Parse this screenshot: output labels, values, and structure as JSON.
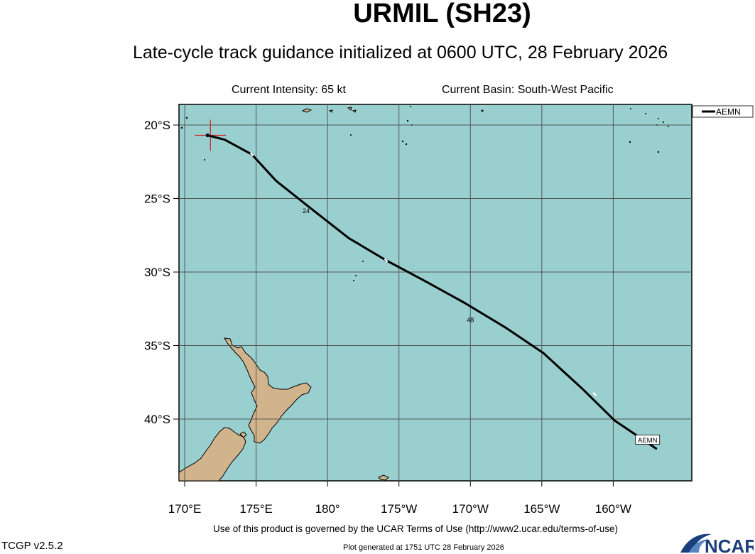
{
  "header": {
    "title": "URMIL (SH23)",
    "subtitle": "Late-cycle track guidance initialized at 0600 UTC, 28 February 2026",
    "intensity": "Current Intensity: 65 kt",
    "basin": "Current Basin: South-West Pacific"
  },
  "footer": {
    "terms": "Use of this product is governed by the UCAR Terms of Use (http://www2.ucar.edu/terms-of-use)",
    "generated": "Plot generated at 1751 UTC   28 February 2026",
    "version": "TCGP v2.5.2",
    "logo_text": "NCAR"
  },
  "colors": {
    "ocean": "#99cfcf",
    "land": "#d2b48c",
    "grid": "#555555",
    "track": "#000000",
    "current_position": "#cc2222"
  },
  "chart_data": {
    "type": "line",
    "title": "URMIL (SH23)",
    "xlabel": "",
    "ylabel": "",
    "x_units": "longitude (degrees east, 0-360)",
    "y_units": "latitude (degrees, negative = south)",
    "xlim": [
      169.6,
      205.5
    ],
    "ylim": [
      -44.2,
      -18.6
    ],
    "x_ticks": [
      170,
      175,
      180,
      185,
      190,
      195,
      200
    ],
    "x_tick_labels": [
      "170°E",
      "175°E",
      "180°",
      "175°W",
      "170°W",
      "165°W",
      "160°W"
    ],
    "y_ticks": [
      -20,
      -25,
      -30,
      -35,
      -40
    ],
    "y_tick_labels": [
      "20°S",
      "25°S",
      "30°S",
      "35°S",
      "40°S"
    ],
    "grid": true,
    "legend": "top-right",
    "current_position": {
      "lon": 171.8,
      "lat": -20.7
    },
    "series": [
      {
        "name": "AEMN",
        "color": "#000000",
        "lon": [
          171.6,
          172.8,
          174.7,
          176.4,
          179.0,
          181.5,
          184.1,
          186.8,
          189.6,
          192.5,
          195.1,
          197.8,
          200.1,
          203.0
        ],
        "lat": [
          -20.7,
          -21.0,
          -22.0,
          -23.8,
          -25.8,
          -27.7,
          -29.2,
          -30.6,
          -32.1,
          -33.8,
          -35.5,
          -37.9,
          -40.1,
          -42.0
        ],
        "markers_lon": [
          174.7,
          184.1,
          198.7
        ],
        "markers_lat": [
          -22.0,
          -29.2,
          -38.3
        ],
        "point_labels": [
          {
            "text": "24",
            "lon": 178.5,
            "lat": -26.0
          },
          {
            "text": "48",
            "lon": 190.0,
            "lat": -33.4
          }
        ],
        "end_label": "AEMN"
      }
    ]
  }
}
